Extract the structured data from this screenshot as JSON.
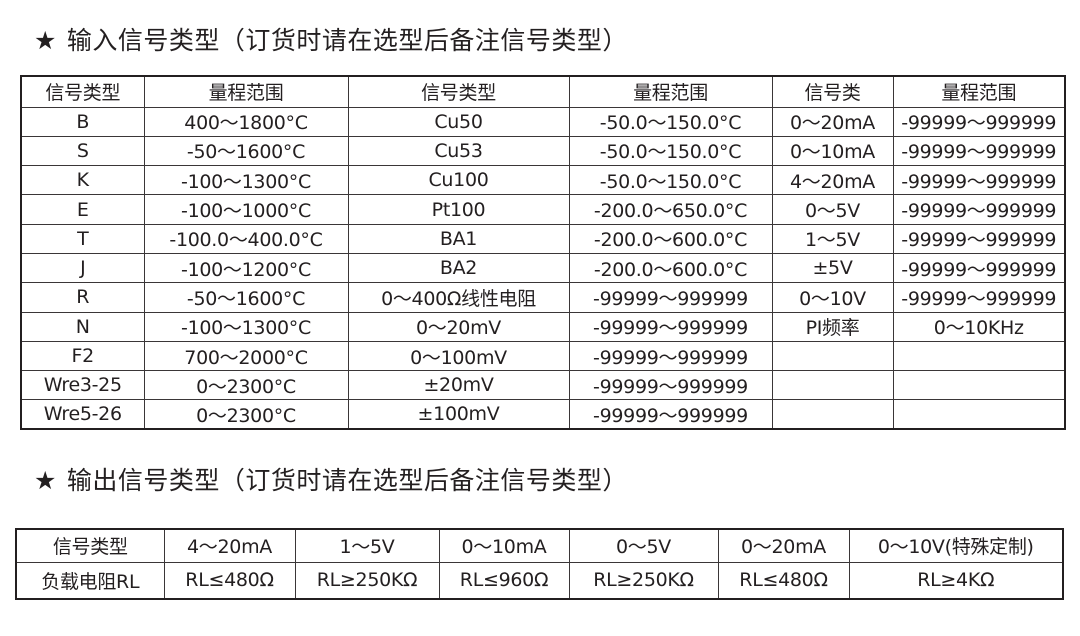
{
  "input_section": {
    "star": "★",
    "title": "输入信号类型（订货时请在选型后备注信号类型）",
    "headers": [
      "信号类型",
      "量程范围",
      "信号类型",
      "量程范围",
      "信号类",
      "量程范围"
    ],
    "rows": [
      [
        "B",
        "400～1800°C",
        "Cu50",
        "-50.0～150.0°C",
        "0～20mA",
        "-99999～999999"
      ],
      [
        "S",
        "-50～1600°C",
        "Cu53",
        "-50.0～150.0°C",
        "0～10mA",
        "-99999～999999"
      ],
      [
        "K",
        "-100～1300°C",
        "Cu100",
        "-50.0～150.0°C",
        "4～20mA",
        "-99999～999999"
      ],
      [
        "E",
        "-100～1000°C",
        "Pt100",
        "-200.0～650.0°C",
        "0～5V",
        "-99999～999999"
      ],
      [
        "T",
        "-100.0～400.0°C",
        "BA1",
        "-200.0～600.0°C",
        "1～5V",
        "-99999～999999"
      ],
      [
        "J",
        "-100～1200°C",
        "BA2",
        "-200.0～600.0°C",
        "±5V",
        "-99999～999999"
      ],
      [
        "R",
        "-50～1600°C",
        "0～400Ω线性电阻",
        "-99999～999999",
        "0～10V",
        "-99999～999999"
      ],
      [
        "N",
        "-100～1300°C",
        "0～20mV",
        "-99999～999999",
        "PI频率",
        "0～10KHz"
      ],
      [
        "F2",
        "700～2000°C",
        "0～100mV",
        "-99999～999999",
        "",
        ""
      ],
      [
        "Wre3-25",
        "0～2300°C",
        "±20mV",
        "-99999～999999",
        "",
        ""
      ],
      [
        "Wre5-26",
        "0～2300°C",
        "±100mV",
        "-99999～999999",
        "",
        ""
      ]
    ]
  },
  "output_section": {
    "star": "★",
    "title": "输出信号类型（订货时请在选型后备注信号类型）",
    "signal_row": [
      "信号类型",
      "4～20mA",
      "1～5V",
      "0～10mA",
      "0～5V",
      "0～20mA",
      "0～10V(特殊定制)"
    ],
    "load_row": [
      "负载电阻RL",
      "RL≤480Ω",
      "RL≥250KΩ",
      "RL≤960Ω",
      "RL≥250KΩ",
      "RL≤480Ω",
      "RL≥4KΩ"
    ]
  }
}
